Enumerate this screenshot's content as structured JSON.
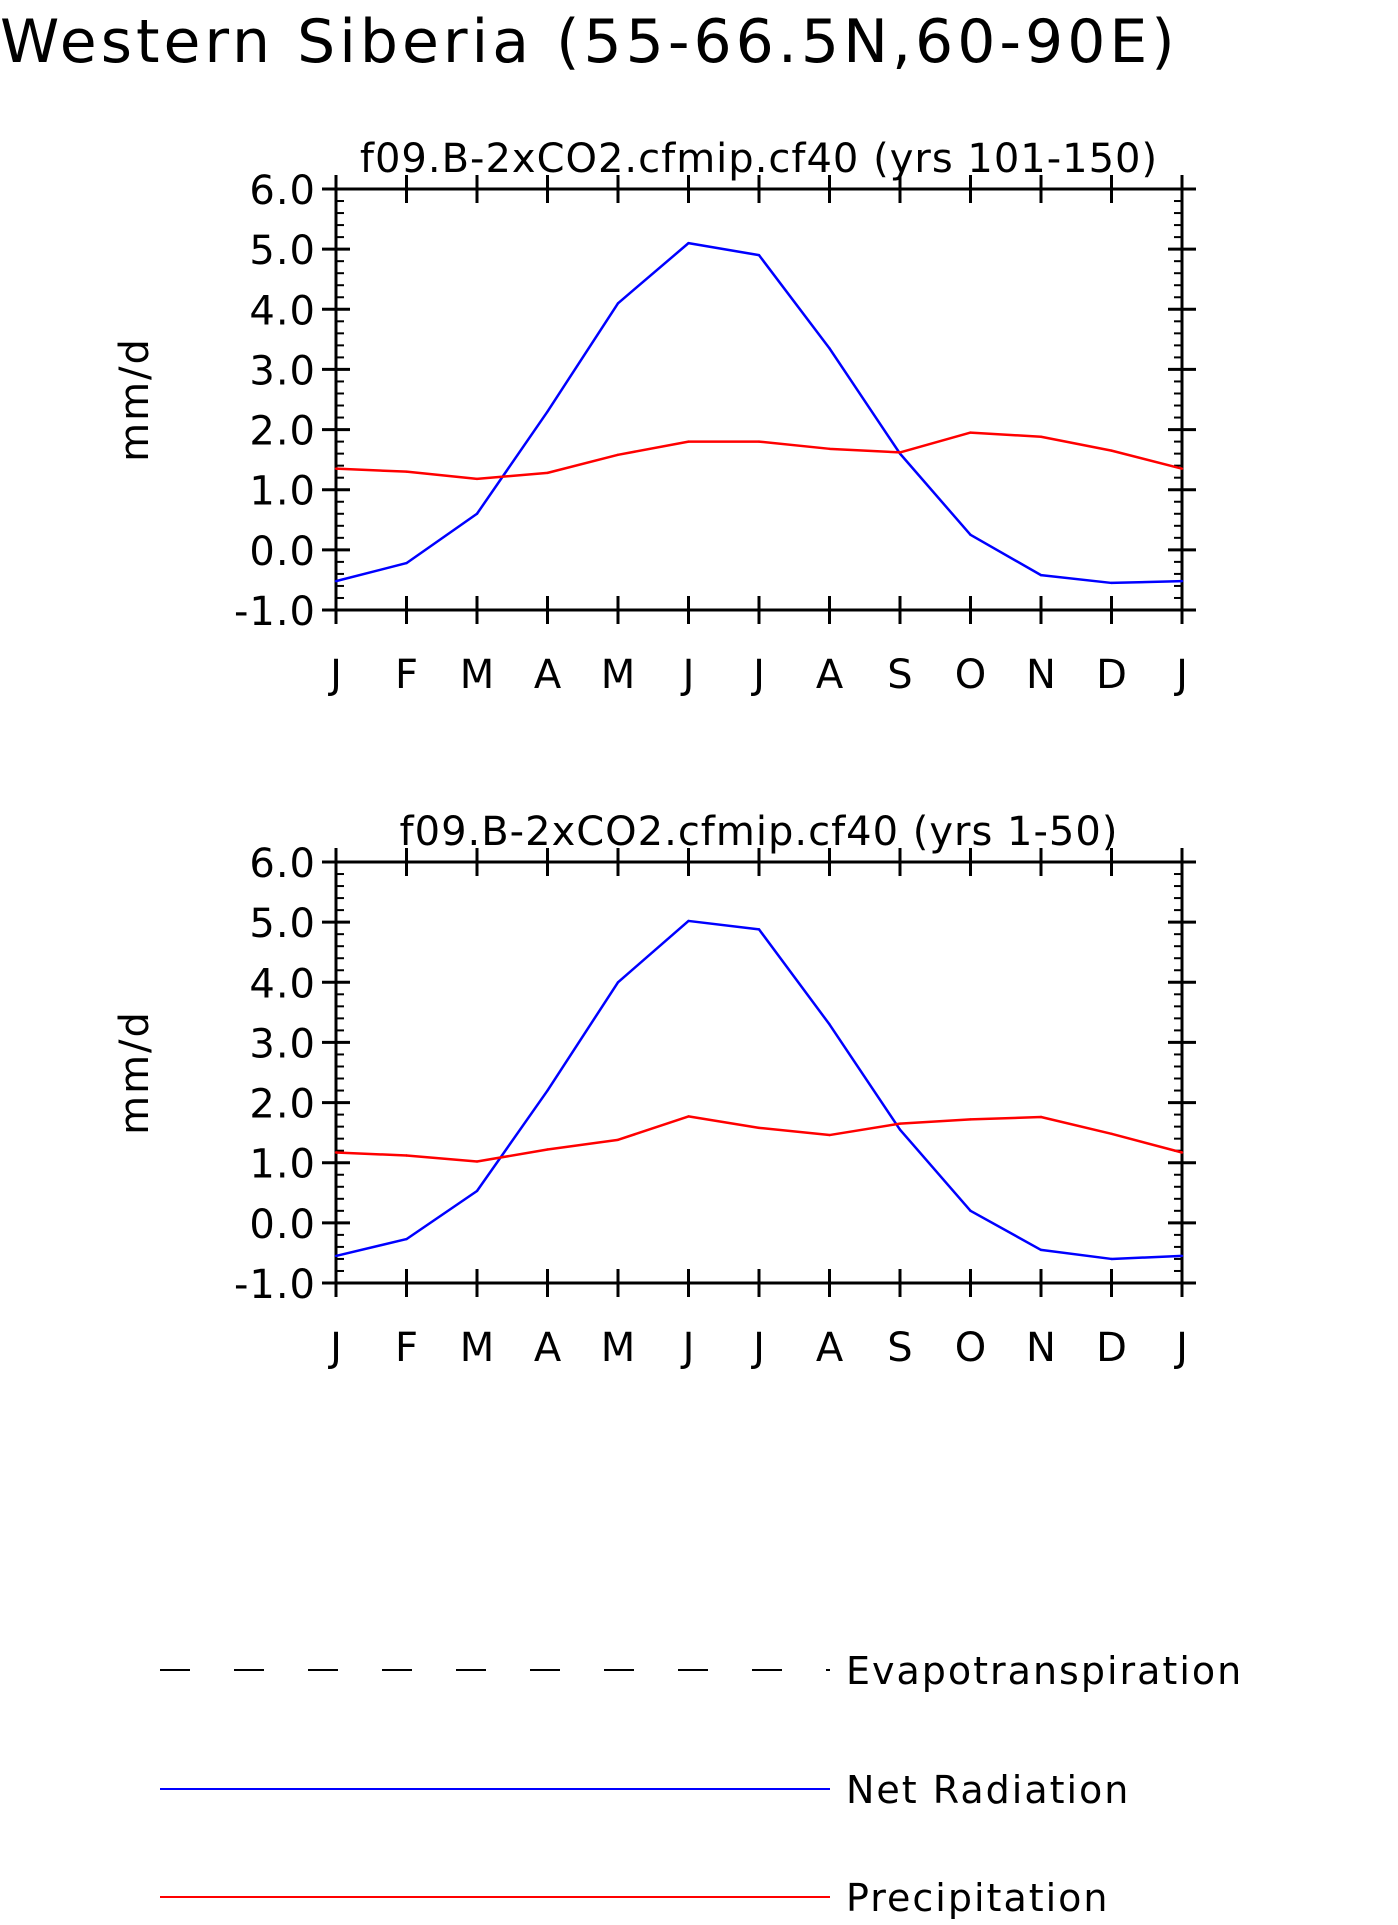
{
  "title": "Western Siberia (55-66.5N,60-90E)",
  "legend": [
    {
      "label": "Evapotranspiration",
      "color": "#000000",
      "style": "dashed"
    },
    {
      "label": "Net Radiation",
      "color": "#0000ff",
      "style": "solid"
    },
    {
      "label": "Precipitation",
      "color": "#ff0000",
      "style": "solid"
    }
  ],
  "chart_data": [
    {
      "type": "line",
      "title": "f09.B-2xCO2.cfmip.cf40 (yrs 101-150)",
      "xlabel": "",
      "ylabel": "mm/d",
      "x": [
        "J",
        "F",
        "M",
        "A",
        "M",
        "J",
        "J",
        "A",
        "S",
        "O",
        "N",
        "D",
        "J"
      ],
      "yticks": [
        "6.0",
        "5.0",
        "4.0",
        "3.0",
        "2.0",
        "1.0",
        "0.0",
        "-1.0"
      ],
      "ylim": [
        -1.0,
        6.0
      ],
      "grid": false,
      "series": [
        {
          "name": "Net Radiation",
          "color": "#0000ff",
          "values": [
            -0.52,
            -0.22,
            0.6,
            2.3,
            4.1,
            5.1,
            4.9,
            3.35,
            1.6,
            0.25,
            -0.42,
            -0.55,
            -0.52
          ]
        },
        {
          "name": "Precipitation",
          "color": "#ff0000",
          "values": [
            1.35,
            1.3,
            1.18,
            1.28,
            1.58,
            1.8,
            1.8,
            1.68,
            1.62,
            1.95,
            1.88,
            1.65,
            1.35
          ]
        }
      ]
    },
    {
      "type": "line",
      "title": "f09.B-2xCO2.cfmip.cf40 (yrs 1-50)",
      "xlabel": "",
      "ylabel": "mm/d",
      "x": [
        "J",
        "F",
        "M",
        "A",
        "M",
        "J",
        "J",
        "A",
        "S",
        "O",
        "N",
        "D",
        "J"
      ],
      "yticks": [
        "6.0",
        "5.0",
        "4.0",
        "3.0",
        "2.0",
        "1.0",
        "0.0",
        "-1.0"
      ],
      "ylim": [
        -1.0,
        6.0
      ],
      "grid": false,
      "series": [
        {
          "name": "Net Radiation",
          "color": "#0000ff",
          "values": [
            -0.55,
            -0.27,
            0.53,
            2.2,
            4.0,
            5.02,
            4.88,
            3.3,
            1.55,
            0.2,
            -0.45,
            -0.6,
            -0.55
          ]
        },
        {
          "name": "Precipitation",
          "color": "#ff0000",
          "values": [
            1.17,
            1.12,
            1.02,
            1.22,
            1.38,
            1.77,
            1.58,
            1.46,
            1.65,
            1.72,
            1.76,
            1.48,
            1.17
          ]
        }
      ]
    }
  ]
}
